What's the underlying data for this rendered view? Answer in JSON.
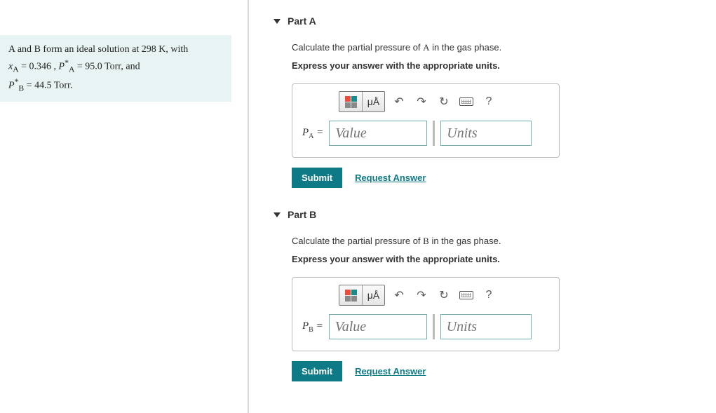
{
  "problem_statement": {
    "line1_prefix": " and ",
    "line1_mid": " form an ideal solution at 298 ",
    "line1_suffix": ", with",
    "xA_lhs": "x",
    "xA_sub": "A",
    "xA_val": "0.346",
    "PA_lhs": "P",
    "PA_sup": "*",
    "PA_sub": "A",
    "PA_val": "95.0 Torr",
    "conj": ", and",
    "PB_lhs": "P",
    "PB_sup": "*",
    "PB_sub": "B",
    "PB_val": "44.5 Torr"
  },
  "parts": {
    "A": {
      "title": "Part A",
      "prompt_prefix": "Calculate the partial pressure of ",
      "prompt_var": "A",
      "prompt_suffix": " in the gas phase.",
      "instruction": "Express your answer with the appropriate units.",
      "var_label_main": "P",
      "var_label_sub": "A",
      "value_placeholder": "Value",
      "units_placeholder": "Units",
      "submit": "Submit",
      "request": "Request Answer"
    },
    "B": {
      "title": "Part B",
      "prompt_prefix": "Calculate the partial pressure of ",
      "prompt_var": "B",
      "prompt_suffix": " in the gas phase.",
      "instruction": "Express your answer with the appropriate units.",
      "var_label_main": "P",
      "var_label_sub": "B",
      "value_placeholder": "Value",
      "units_placeholder": "Units",
      "submit": "Submit",
      "request": "Request Answer"
    }
  },
  "toolbar": {
    "templates": "templates",
    "symbols": "μÅ",
    "undo": "↶",
    "redo": "↷",
    "reset": "↻",
    "keyboard": "keyboard",
    "help": "?"
  },
  "colors": {
    "accent": "#0e7a86",
    "panel_bg": "#e8f3f3",
    "border": "#bbb",
    "input_border": "#79b0b0"
  }
}
